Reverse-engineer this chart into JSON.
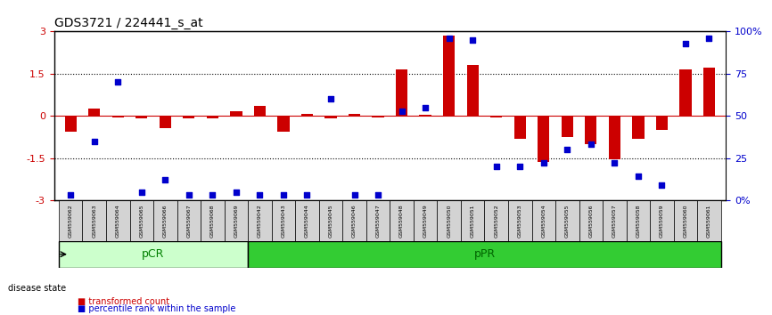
{
  "title": "GDS3721 / 224441_s_at",
  "samples": [
    "GSM559062",
    "GSM559063",
    "GSM559064",
    "GSM559065",
    "GSM559066",
    "GSM559067",
    "GSM559068",
    "GSM559069",
    "GSM559042",
    "GSM559043",
    "GSM559044",
    "GSM559045",
    "GSM559046",
    "GSM559047",
    "GSM559048",
    "GSM559049",
    "GSM559050",
    "GSM559051",
    "GSM559052",
    "GSM559053",
    "GSM559054",
    "GSM559055",
    "GSM559056",
    "GSM559057",
    "GSM559058",
    "GSM559059",
    "GSM559060",
    "GSM559061"
  ],
  "transformed_count": [
    -0.55,
    0.25,
    -0.05,
    -0.1,
    -0.45,
    -0.08,
    -0.08,
    0.18,
    0.35,
    -0.55,
    0.08,
    -0.08,
    0.08,
    -0.05,
    1.65,
    0.05,
    2.85,
    1.8,
    -0.05,
    -0.8,
    -1.65,
    -0.75,
    -1.0,
    -1.55,
    -0.8,
    -0.5,
    1.65,
    1.7
  ],
  "percentile_rank": [
    3,
    35,
    70,
    5,
    12,
    3,
    3,
    5,
    3,
    3,
    3,
    60,
    3,
    3,
    53,
    55,
    96,
    95,
    20,
    20,
    22,
    30,
    33,
    22,
    14,
    9,
    93,
    96
  ],
  "pCR_count": 8,
  "pPR_count": 20,
  "bar_color": "#cc0000",
  "dot_color": "#0000cc",
  "bg_color": "#ffffff",
  "grid_color": "#000000",
  "ylim": [
    -3,
    3
  ],
  "y2lim": [
    0,
    100
  ],
  "yticks_left": [
    -3,
    -1.5,
    0,
    1.5,
    3
  ],
  "yticks_right": [
    0,
    25,
    50,
    75,
    100
  ],
  "ytick_labels_right": [
    "0%",
    "25",
    "50",
    "75",
    "100%"
  ],
  "hline_y": [
    1.5,
    0,
    -1.5
  ],
  "hline_styles": [
    "dotted",
    "solid",
    "dotted"
  ],
  "hline_colors": [
    "black",
    "#cc0000",
    "black"
  ],
  "pCR_color": "#ccffcc",
  "pPR_color": "#33cc33",
  "bar_width": 0.5,
  "dot_size": 6
}
